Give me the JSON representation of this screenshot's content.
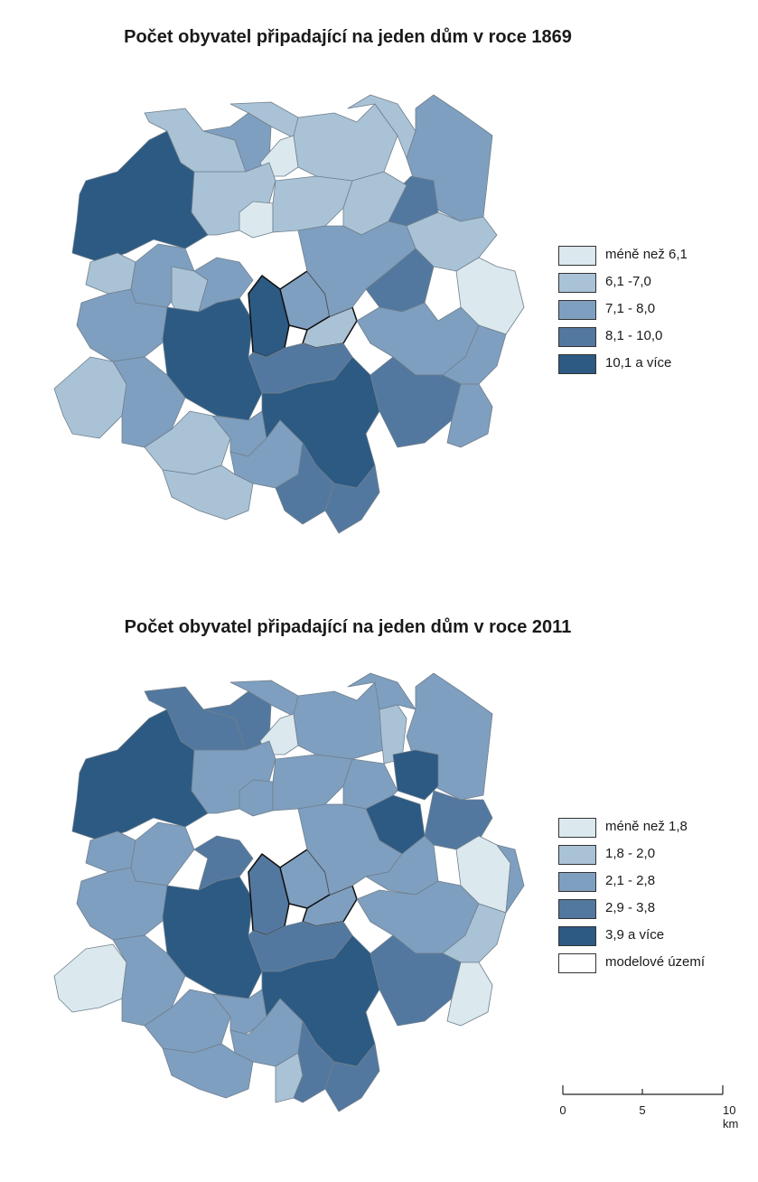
{
  "maps": [
    {
      "title": "Počet obyvatel připadající na jeden dům v roce 1869",
      "legend": [
        {
          "label": "méně než 6,1",
          "color": "#dbe8ee"
        },
        {
          "label": "6,1 -7,0",
          "color": "#a9c2d6"
        },
        {
          "label": "7,1 - 8,0",
          "color": "#7f9fc0"
        },
        {
          "label": "8,1 - 10,0",
          "color": "#53789f"
        },
        {
          "label": "10,1 a více",
          "color": "#2c5a83"
        }
      ]
    },
    {
      "title": "Počet obyvatel připadající na jeden dům v roce 2011",
      "legend": [
        {
          "label": "méně než 1,8",
          "color": "#dbe8ee"
        },
        {
          "label": "1,8 - 2,0",
          "color": "#a9c2d6"
        },
        {
          "label": "2,1 - 2,8",
          "color": "#7f9fc0"
        },
        {
          "label": "2,9 - 3,8",
          "color": "#53789f"
        },
        {
          "label": "3,9 a více",
          "color": "#2c5a83"
        },
        {
          "label": "modelové území",
          "color": "#ffffff"
        }
      ]
    }
  ],
  "scale": {
    "ticks": [
      "0",
      "5",
      "10 km"
    ]
  }
}
